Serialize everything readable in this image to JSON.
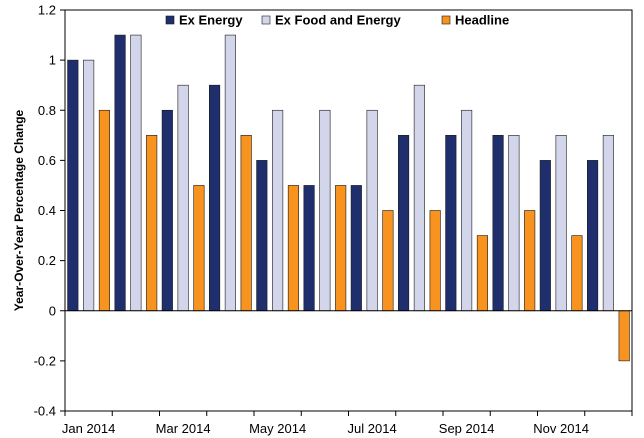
{
  "chart_data": {
    "type": "bar",
    "title": "",
    "xlabel": "",
    "ylabel": "Year-Over-Year Percentage Change",
    "ylim": [
      -0.4,
      1.2
    ],
    "yticks": [
      -0.4,
      -0.2,
      0,
      0.2,
      0.4,
      0.6,
      0.8,
      1,
      1.2
    ],
    "ytick_labels": [
      "-0.4",
      "-0.2",
      "0",
      "0.2",
      "0.4",
      "0.6",
      "0.8",
      "1",
      "1.2"
    ],
    "grid": false,
    "legend_position": "top",
    "categories": [
      "Jan 2014",
      "Feb 2014",
      "Mar 2014",
      "Apr 2014",
      "May 2014",
      "Jun 2014",
      "Jul 2014",
      "Aug 2014",
      "Sep 2014",
      "Oct 2014",
      "Nov 2014",
      "Dec 2014"
    ],
    "x_tick_labels": [
      "Jan 2014",
      "",
      "Mar 2014",
      "",
      "May 2014",
      "",
      "Jul 2014",
      "",
      "Sep 2014",
      "",
      "Nov 2014",
      ""
    ],
    "series": [
      {
        "name": "Ex Energy",
        "color": "#1f2f6e",
        "values": [
          1.0,
          1.1,
          0.8,
          0.9,
          0.6,
          0.5,
          0.5,
          0.7,
          0.7,
          0.7,
          0.6,
          0.6
        ]
      },
      {
        "name": "Ex Food and Energy",
        "color": "#d3d6ea",
        "values": [
          1.0,
          1.1,
          0.9,
          1.1,
          0.8,
          0.8,
          0.8,
          0.9,
          0.8,
          0.7,
          0.7,
          0.7
        ]
      },
      {
        "name": "Headline",
        "color": "#f7931e",
        "values": [
          0.8,
          0.7,
          0.5,
          0.7,
          0.5,
          0.5,
          0.4,
          0.4,
          0.3,
          0.4,
          0.3,
          -0.2
        ]
      }
    ]
  }
}
